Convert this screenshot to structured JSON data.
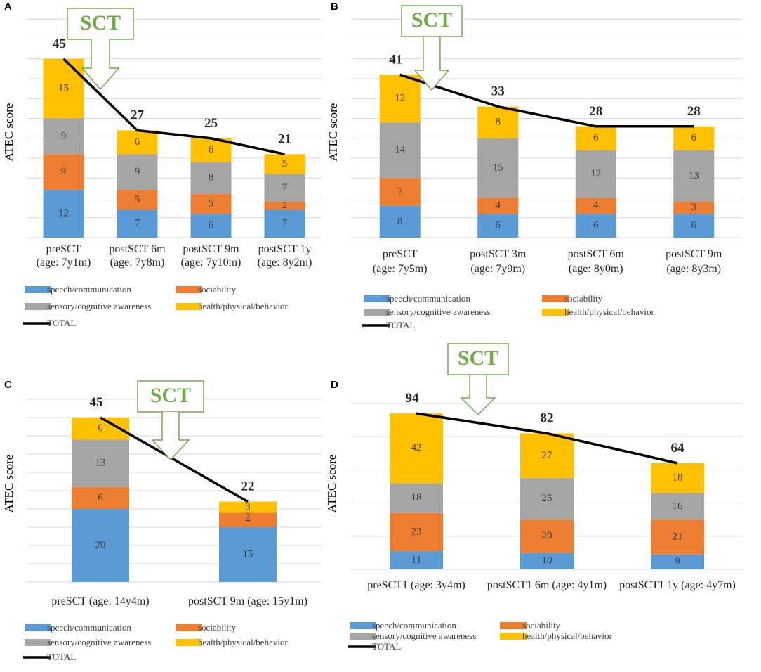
{
  "colors": {
    "speech": "#5b9bd5",
    "sociability": "#ed7d31",
    "sensory": "#a5a5a5",
    "health": "#ffc000",
    "total": "#000000",
    "sct": "#70ad47",
    "grid": "#d9d9d9"
  },
  "legend": {
    "speech": "speech/communication",
    "sociability": "sociability",
    "sensory": "sensory/cognitive awareness",
    "health": "health/physical/behavior",
    "total": "TOTAL"
  },
  "chart_data": [
    {
      "panel": "A",
      "type": "bar",
      "stacked": true,
      "ylabel": "ATEC score",
      "annotation": "SCT",
      "categories": [
        [
          "preSCT",
          "(age: 7y1m)"
        ],
        [
          "postSCT 6m",
          "(age: 7y8m)"
        ],
        [
          "postSCT 9m",
          "(age: 7y10m)"
        ],
        [
          "postSCT 1y",
          "(age: 8y2m)"
        ]
      ],
      "series": [
        {
          "name": "speech/communication",
          "values": [
            12,
            7,
            6,
            7
          ]
        },
        {
          "name": "sociability",
          "values": [
            9,
            5,
            5,
            2
          ]
        },
        {
          "name": "sensory/cognitive awareness",
          "values": [
            9,
            9,
            8,
            7
          ]
        },
        {
          "name": "health/physical/behavior",
          "values": [
            15,
            6,
            6,
            5
          ]
        }
      ],
      "total": [
        45,
        27,
        25,
        21
      ]
    },
    {
      "panel": "B",
      "type": "bar",
      "stacked": true,
      "ylabel": "ATEC score",
      "annotation": "SCT",
      "categories": [
        [
          "preSCT",
          "(age: 7y5m)"
        ],
        [
          "postSCT 3m",
          "(age: 7y9m)"
        ],
        [
          "postSCT 6m",
          "(age: 8y0m)"
        ],
        [
          "postSCT 9m",
          "(age: 8y3m)"
        ]
      ],
      "series": [
        {
          "name": "speech/communication",
          "values": [
            8,
            6,
            6,
            6
          ]
        },
        {
          "name": "sociability",
          "values": [
            7,
            4,
            4,
            3
          ]
        },
        {
          "name": "sensory/cognitive awareness",
          "values": [
            14,
            15,
            12,
            13
          ]
        },
        {
          "name": "health/physical/behavior",
          "values": [
            12,
            8,
            6,
            6
          ]
        }
      ],
      "total": [
        41,
        33,
        28,
        28
      ]
    },
    {
      "panel": "C",
      "type": "bar",
      "stacked": true,
      "ylabel": "ATEC score",
      "annotation": "SCT",
      "categories": [
        [
          "preSCT (age: 14y4m)"
        ],
        [
          "postSCT 9m (age: 15y1m)"
        ]
      ],
      "series": [
        {
          "name": "speech/communication",
          "values": [
            20,
            15
          ]
        },
        {
          "name": "sociability",
          "values": [
            6,
            4
          ]
        },
        {
          "name": "sensory/cognitive awareness",
          "values": [
            13,
            0
          ]
        },
        {
          "name": "health/physical/behavior",
          "values": [
            6,
            3
          ]
        }
      ],
      "total": [
        45,
        22
      ]
    },
    {
      "panel": "D",
      "type": "bar",
      "stacked": true,
      "ylabel": "ATEC score",
      "annotation": "SCT",
      "categories": [
        [
          "preSCT1 (age: 3y4m)"
        ],
        [
          "postSCT1 6m (age: 4y1m)"
        ],
        [
          "postSCT1 1y (age: 4y7m)"
        ]
      ],
      "series": [
        {
          "name": "speech/communication",
          "values": [
            11,
            10,
            9
          ]
        },
        {
          "name": "sociability",
          "values": [
            23,
            20,
            21
          ]
        },
        {
          "name": "sensory/cognitive awareness",
          "values": [
            18,
            25,
            16
          ]
        },
        {
          "name": "health/physical/behavior",
          "values": [
            42,
            27,
            18
          ]
        }
      ],
      "total": [
        94,
        82,
        64
      ]
    }
  ]
}
